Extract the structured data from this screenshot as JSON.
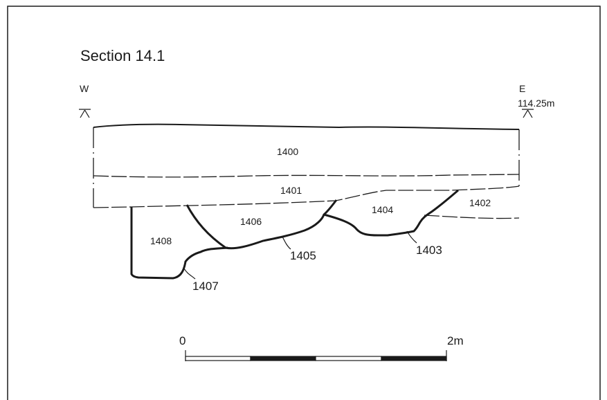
{
  "title": "Section 14.1",
  "directions": {
    "west": "W",
    "east": "E"
  },
  "datum_level": "114.25m",
  "contexts": {
    "c1400": "1400",
    "c1401": "1401",
    "c1402": "1402",
    "c1404": "1404",
    "c1406": "1406",
    "c1408": "1408"
  },
  "cuts": {
    "c1403": "1403",
    "c1405": "1405",
    "c1407": "1407"
  },
  "scale_bar": {
    "start_label": "0",
    "end_label": "2m"
  },
  "colors": {
    "line": "#1a1a1a",
    "border": "#1a1a1a",
    "background": "#ffffff"
  }
}
